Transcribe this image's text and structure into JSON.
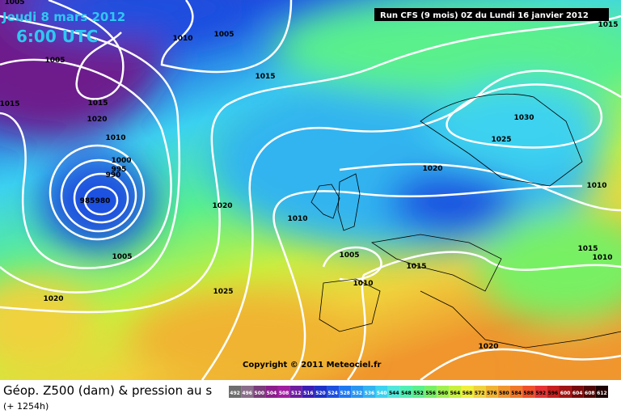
{
  "header": {
    "date": "Jeudi 8 mars 2012",
    "time": "6:00 UTC",
    "run": "Run CFS (9 mois) 0Z du Lundi 16 janvier 2012"
  },
  "copyright": "Copyright © 2011 Meteociel.fr",
  "footer": {
    "title": "Géop. Z500 (dam) & pression au s",
    "lead": "(+ 1254h)"
  },
  "isobar_labels": [
    "1005",
    "1010",
    "1005",
    "1005",
    "1015",
    "1015",
    "1015",
    "1020",
    "1010",
    "1000",
    "995",
    "990",
    "985",
    "980",
    "1005",
    "1020",
    "1010",
    "1020",
    "1030",
    "1025",
    "1015",
    "1010",
    "1005",
    "1010",
    "1015",
    "1015",
    "1010",
    "1025",
    "1020",
    "1020"
  ],
  "scale": {
    "labels": [
      "492",
      "496",
      "500",
      "504",
      "508",
      "512",
      "516",
      "520",
      "524",
      "528",
      "532",
      "536",
      "540",
      "544",
      "548",
      "552",
      "556",
      "560",
      "564",
      "568",
      "572",
      "576",
      "580",
      "584",
      "588",
      "592",
      "596",
      "600",
      "604",
      "608",
      "612"
    ],
    "colors": [
      "#6e6e6e",
      "#8a6e8a",
      "#7a3c7a",
      "#8c1e8c",
      "#a01ea0",
      "#6e1e9e",
      "#3c1eb4",
      "#1e32c8",
      "#1e50e0",
      "#1e78f0",
      "#2896f0",
      "#32b4f0",
      "#3cd2f0",
      "#50e6dc",
      "#50f0b4",
      "#5af08c",
      "#78f064",
      "#a0f050",
      "#c8f03c",
      "#f0f03c",
      "#f0d23c",
      "#f0b432",
      "#f0962d",
      "#f07828",
      "#f05028",
      "#e63232",
      "#c81e1e",
      "#a01414",
      "#780a0a",
      "#500505",
      "#1e0000"
    ]
  }
}
